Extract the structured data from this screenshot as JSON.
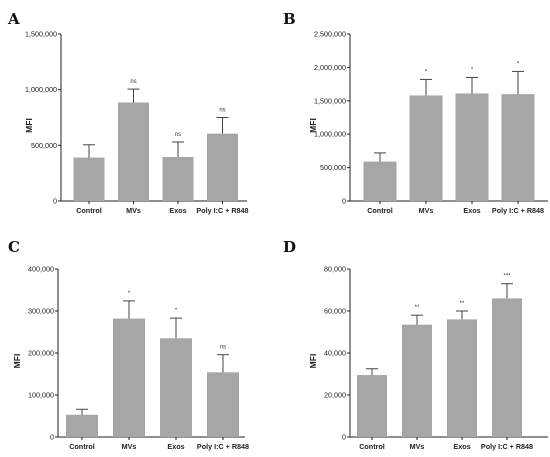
{
  "chart_data": [
    {
      "type": "bar",
      "panel": "A",
      "categories": [
        "Control",
        "MVs",
        "Exos",
        "Poly I:C + R848"
      ],
      "values": [
        390000,
        885000,
        395000,
        605000
      ],
      "errors": [
        115000,
        120000,
        135000,
        145000
      ],
      "significance": [
        "",
        "ns",
        "ns",
        "ns"
      ],
      "ylabel": "MFI",
      "ylim": [
        0,
        1500000
      ],
      "yticks": [
        0,
        500000,
        1000000,
        1500000
      ],
      "ytick_labels": [
        "0",
        "500,000",
        "1,000,000",
        "1,500,000"
      ],
      "bar_color": "#a6a6a6"
    },
    {
      "type": "bar",
      "panel": "B",
      "categories": [
        "Control",
        "MVs",
        "Exos",
        "Poly I:C + R848"
      ],
      "values": [
        590000,
        1580000,
        1610000,
        1600000
      ],
      "errors": [
        130000,
        240000,
        240000,
        340000
      ],
      "significance": [
        "",
        "*",
        "*",
        "*"
      ],
      "ylabel": "MFI",
      "ylim": [
        0,
        2500000
      ],
      "yticks": [
        0,
        500000,
        1000000,
        1500000,
        2000000,
        2500000
      ],
      "ytick_labels": [
        "0",
        "500,000",
        "1,000,000",
        "1,500,000",
        "2,000,000",
        "2,500,000"
      ],
      "bar_color": "#a6a6a6"
    },
    {
      "type": "bar",
      "panel": "C",
      "categories": [
        "Control",
        "MVs",
        "Exos",
        "Poly I:C + R848"
      ],
      "values": [
        53000,
        282000,
        235000,
        154000
      ],
      "errors": [
        13000,
        42000,
        48000,
        42000
      ],
      "significance": [
        "",
        "*",
        "*",
        "ns"
      ],
      "ylabel": "MFI",
      "ylim": [
        0,
        400000
      ],
      "yticks": [
        0,
        100000,
        200000,
        300000,
        400000
      ],
      "ytick_labels": [
        "0",
        "100,000",
        "200,000",
        "300,000",
        "400,000"
      ],
      "bar_color": "#a6a6a6"
    },
    {
      "type": "bar",
      "panel": "D",
      "categories": [
        "Control",
        "MVs",
        "Exos",
        "Poly I:C + R848"
      ],
      "values": [
        29500,
        53500,
        56000,
        66000
      ],
      "errors": [
        3000,
        4500,
        4000,
        7000
      ],
      "significance": [
        "",
        "**",
        "**",
        "***"
      ],
      "ylabel": "MFI",
      "ylim": [
        0,
        80000
      ],
      "yticks": [
        0,
        20000,
        40000,
        60000,
        80000
      ],
      "ytick_labels": [
        "0",
        "20,000",
        "40,000",
        "60,000",
        "80,000"
      ],
      "bar_color": "#a6a6a6"
    }
  ]
}
